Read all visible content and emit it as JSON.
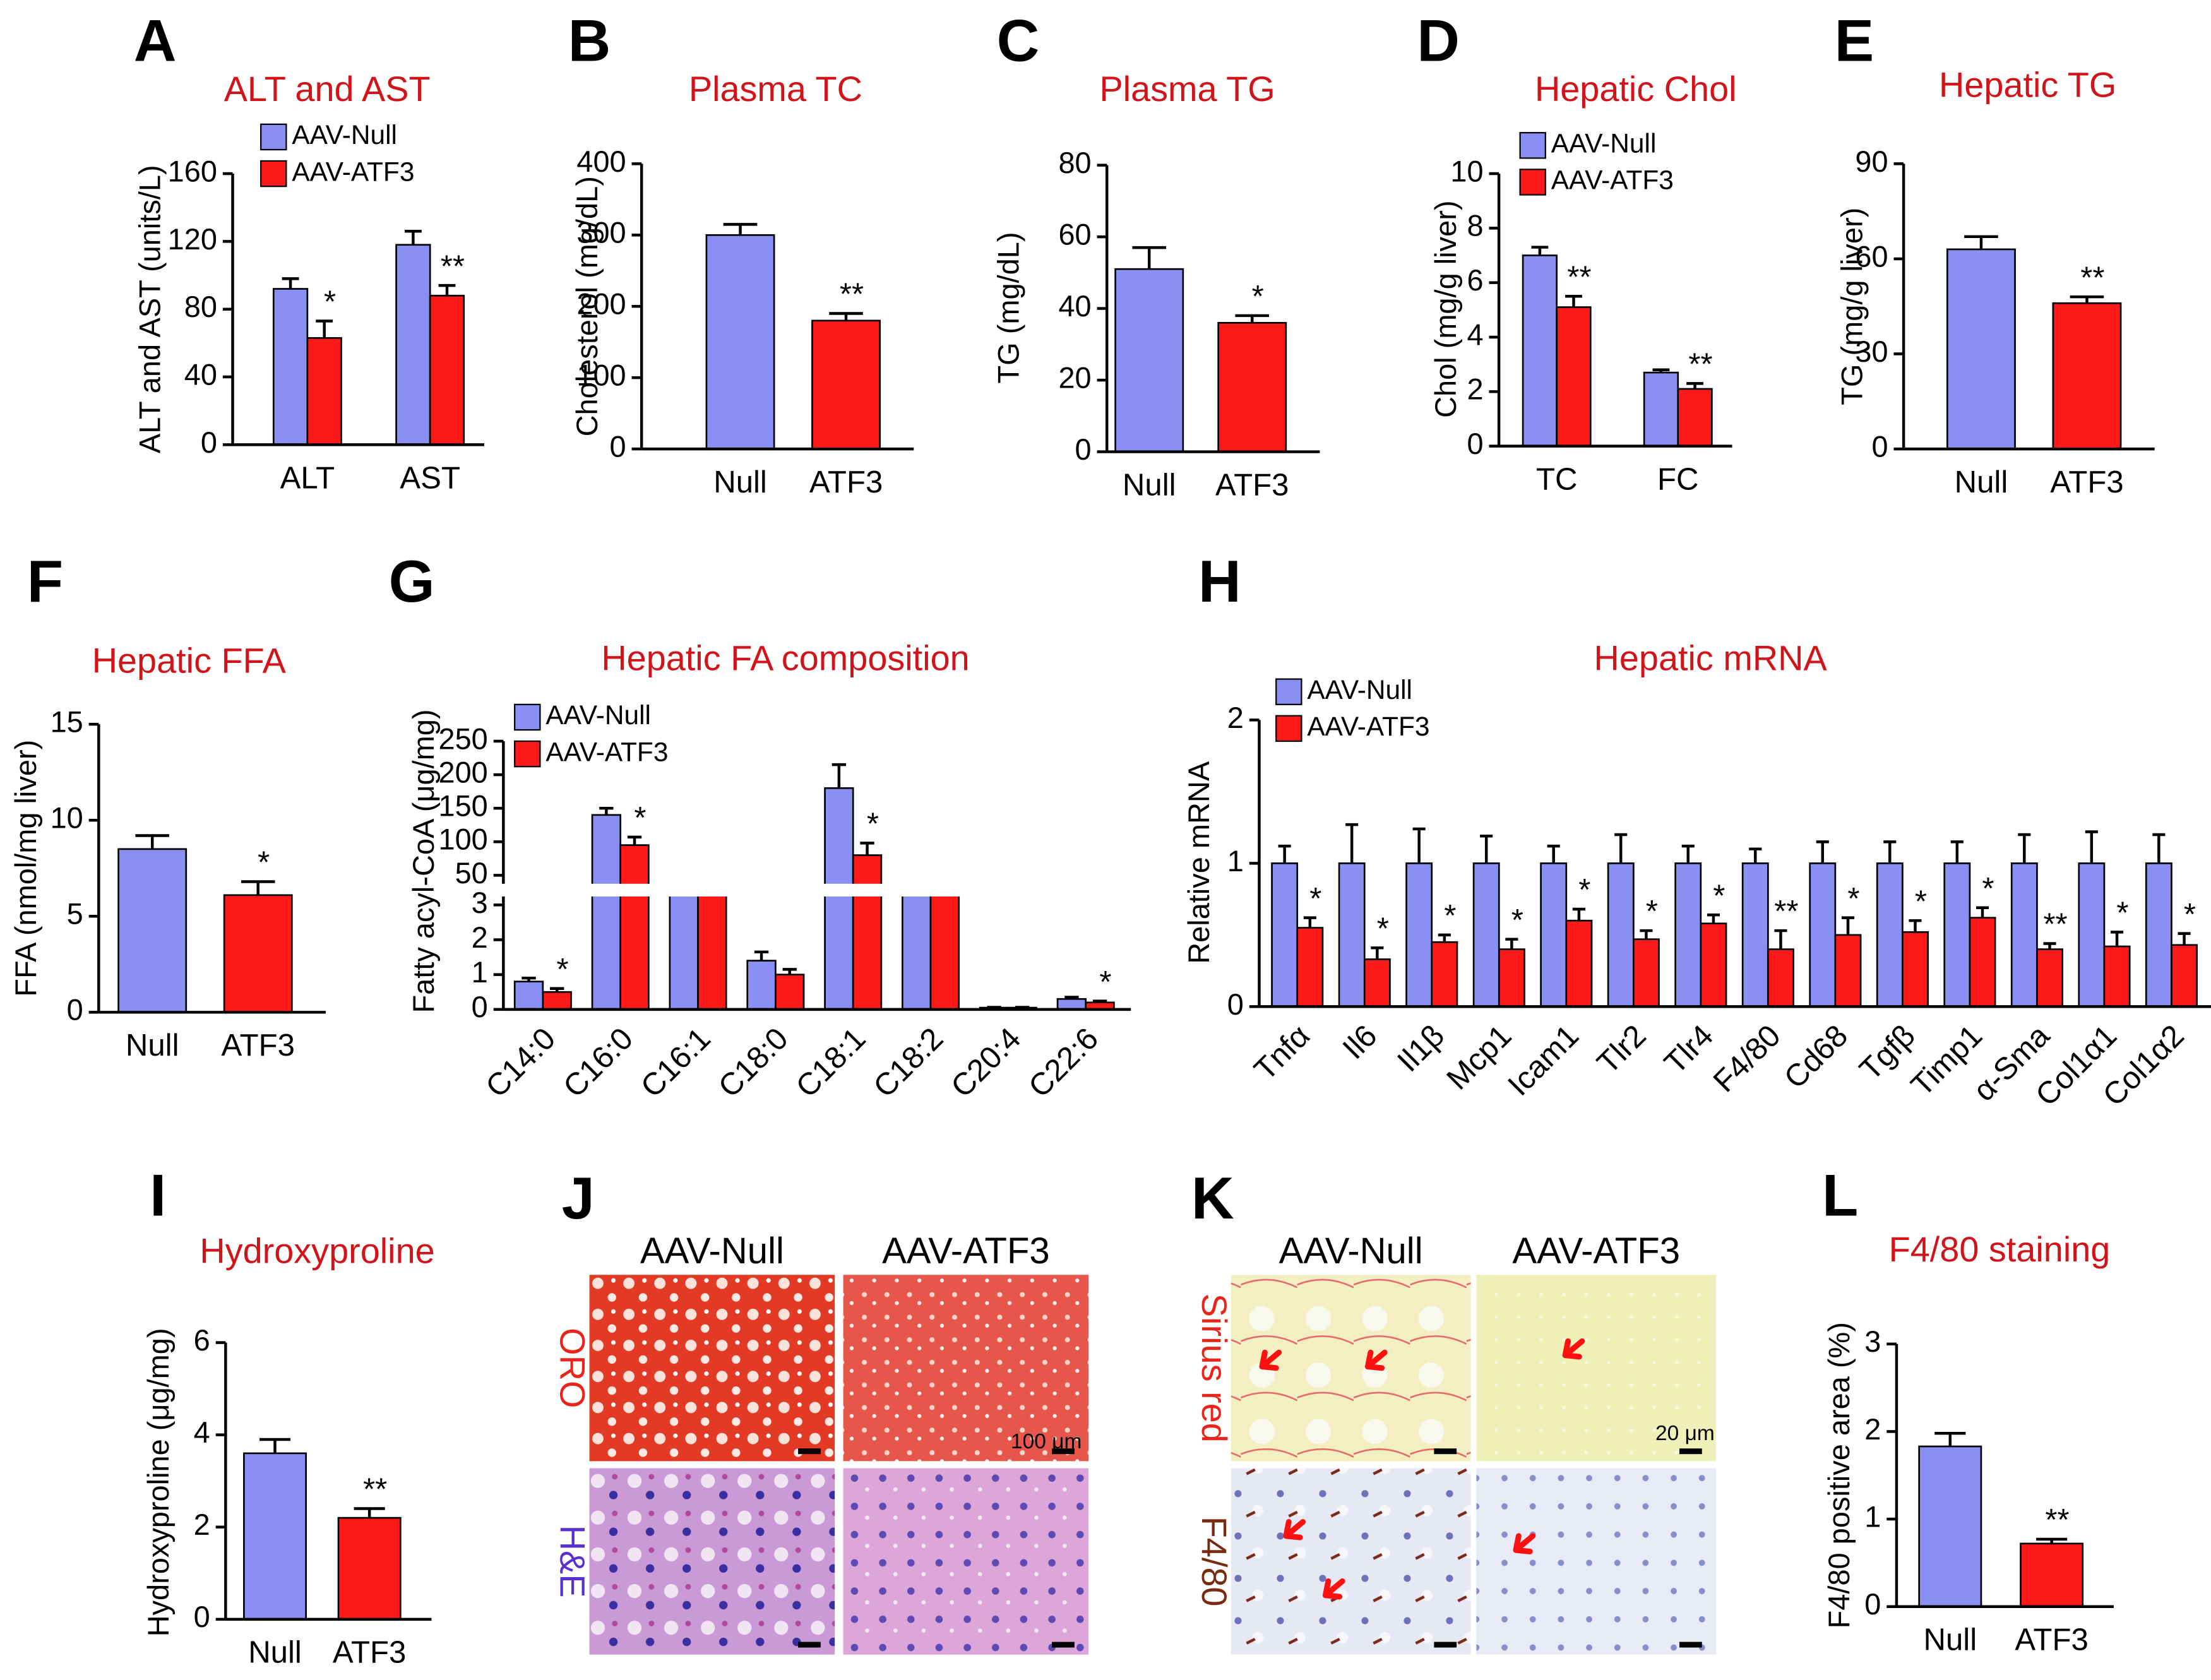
{
  "chart_data": [
    {
      "type": "bar",
      "panel": "A",
      "title": "ALT and AST",
      "ylabel": "ALT and AST (units/L)",
      "categories": [
        "ALT",
        "AST"
      ],
      "series": [
        {
          "name": "AAV-Null",
          "color": "#8a8ff3",
          "values": [
            92,
            118
          ],
          "errors": [
            6,
            8
          ],
          "significance": [
            null,
            null
          ]
        },
        {
          "name": "AAV-ATF3",
          "color": "#ff1a1a",
          "values": [
            63,
            88
          ],
          "errors": [
            10,
            6
          ],
          "significance": [
            "*",
            "**"
          ]
        }
      ],
      "ylim": [
        0,
        160
      ],
      "yticks": [
        0,
        40,
        80,
        120,
        160
      ],
      "legend": true
    },
    {
      "type": "bar",
      "panel": "B",
      "title": "Plasma TC",
      "ylabel": "Cholesterol (mg/dL)",
      "categories": [
        "Null",
        "ATF3"
      ],
      "values": [
        300,
        180
      ],
      "errors": [
        15,
        10
      ],
      "colors": [
        "#8a8ff3",
        "#ff1a1a"
      ],
      "significance": [
        null,
        "**"
      ],
      "ylim": [
        0,
        400
      ],
      "yticks": [
        0,
        100,
        200,
        300,
        400
      ]
    },
    {
      "type": "bar",
      "panel": "C",
      "title": "Plasma TG",
      "ylabel": "TG (mg/dL)",
      "categories": [
        "Null",
        "ATF3"
      ],
      "values": [
        51,
        36
      ],
      "errors": [
        6,
        2
      ],
      "colors": [
        "#8a8ff3",
        "#ff1a1a"
      ],
      "significance": [
        null,
        "*"
      ],
      "ylim": [
        0,
        80
      ],
      "yticks": [
        0,
        20,
        40,
        60,
        80
      ]
    },
    {
      "type": "bar",
      "panel": "D",
      "title": "Hepatic Chol",
      "ylabel": "Chol (mg/g liver)",
      "categories": [
        "TC",
        "FC"
      ],
      "series": [
        {
          "name": "AAV-Null",
          "color": "#8a8ff3",
          "values": [
            7.0,
            2.7
          ],
          "errors": [
            0.3,
            0.1
          ],
          "significance": [
            null,
            null
          ]
        },
        {
          "name": "AAV-ATF3",
          "color": "#ff1a1a",
          "values": [
            5.1,
            2.1
          ],
          "errors": [
            0.4,
            0.2
          ],
          "significance": [
            "**",
            "**"
          ]
        }
      ],
      "ylim": [
        0,
        10
      ],
      "yticks": [
        0,
        2,
        4,
        6,
        8,
        10
      ],
      "legend": true
    },
    {
      "type": "bar",
      "panel": "E",
      "title": "Hepatic TG",
      "ylabel": "TG (mg/g liver)",
      "categories": [
        "Null",
        "ATF3"
      ],
      "values": [
        63,
        46
      ],
      "errors": [
        4,
        2
      ],
      "colors": [
        "#8a8ff3",
        "#ff1a1a"
      ],
      "significance": [
        null,
        "**"
      ],
      "ylim": [
        0,
        90
      ],
      "yticks": [
        0,
        30,
        60,
        90
      ]
    },
    {
      "type": "bar",
      "panel": "F",
      "title": "Hepatic FFA",
      "ylabel": "FFA (nmol/mg liver)",
      "categories": [
        "Null",
        "ATF3"
      ],
      "values": [
        8.5,
        6.1
      ],
      "errors": [
        0.7,
        0.7
      ],
      "colors": [
        "#8a8ff3",
        "#ff1a1a"
      ],
      "significance": [
        null,
        "*"
      ],
      "ylim": [
        0,
        15
      ],
      "yticks": [
        0,
        5,
        10,
        15
      ]
    },
    {
      "type": "bar",
      "panel": "G",
      "title": "Hepatic FA composition",
      "ylabel": "Fatty acyl-CoA (μg/mg)",
      "categories": [
        "C14:0",
        "C16:0",
        "C16:1",
        "C18:0",
        "C18:1",
        "C18:2",
        "C20:4",
        "C22:6"
      ],
      "series": [
        {
          "name": "AAV-Null",
          "color": "#8a8ff3",
          "values": [
            0.8,
            140,
            20,
            1.4,
            180,
            20,
            0.05,
            0.3
          ],
          "errors": [
            0.1,
            10,
            1,
            0.25,
            35,
            1,
            0.01,
            0.05
          ],
          "significance": [
            null,
            null,
            null,
            null,
            null,
            null,
            null,
            null
          ]
        },
        {
          "name": "AAV-ATF3",
          "color": "#ff1a1a",
          "values": [
            0.5,
            95,
            20,
            1.0,
            80,
            20,
            0.05,
            0.2
          ],
          "errors": [
            0.1,
            12,
            1,
            0.15,
            18,
            1,
            0.01,
            0.04
          ],
          "significance": [
            "*",
            "*",
            null,
            null,
            "*",
            null,
            null,
            "*"
          ]
        }
      ],
      "ylim": [
        0,
        250
      ],
      "ybreak": [
        3,
        50
      ],
      "yticks": [
        0,
        1,
        2,
        3,
        50,
        100,
        150,
        200,
        250
      ],
      "legend": true
    },
    {
      "type": "bar",
      "panel": "H",
      "title": "Hepatic mRNA",
      "ylabel": "Relative mRNA",
      "categories": [
        "Tnfα",
        "Il6",
        "Il1β",
        "Mcp1",
        "Icam1",
        "Tlr2",
        "Tlr4",
        "F4/80",
        "Cd68",
        "Tgfβ",
        "Timp1",
        "α-Sma",
        "Col1α1",
        "Col1α2"
      ],
      "series": [
        {
          "name": "AAV-Null",
          "color": "#8a8ff3",
          "values": [
            1,
            1,
            1,
            1,
            1,
            1,
            1,
            1,
            1,
            1,
            1,
            1,
            1,
            1
          ],
          "errors": [
            0.12,
            0.27,
            0.24,
            0.19,
            0.12,
            0.2,
            0.12,
            0.1,
            0.15,
            0.15,
            0.15,
            0.2,
            0.22,
            0.2
          ],
          "significance": [
            null,
            null,
            null,
            null,
            null,
            null,
            null,
            null,
            null,
            null,
            null,
            null,
            null,
            null
          ]
        },
        {
          "name": "AAV-ATF3",
          "color": "#ff1a1a",
          "values": [
            0.55,
            0.33,
            0.45,
            0.4,
            0.6,
            0.47,
            0.58,
            0.4,
            0.5,
            0.52,
            0.62,
            0.4,
            0.42,
            0.43
          ],
          "errors": [
            0.07,
            0.08,
            0.05,
            0.07,
            0.08,
            0.06,
            0.06,
            0.13,
            0.12,
            0.08,
            0.07,
            0.04,
            0.1,
            0.08
          ],
          "significance": [
            "*",
            "*",
            "*",
            "*",
            "*",
            "*",
            "*",
            "**",
            "*",
            "*",
            "*",
            "**",
            "*",
            "*"
          ]
        }
      ],
      "ylim": [
        0,
        2
      ],
      "yticks": [
        0,
        1,
        2
      ],
      "legend": true
    },
    {
      "type": "bar",
      "panel": "I",
      "title": "Hydroxyproline",
      "ylabel": "Hydroxyproline (μg/mg)",
      "categories": [
        "Null",
        "ATF3"
      ],
      "values": [
        3.6,
        2.2
      ],
      "errors": [
        0.3,
        0.2
      ],
      "colors": [
        "#8a8ff3",
        "#ff1a1a"
      ],
      "significance": [
        null,
        "**"
      ],
      "ylim": [
        0,
        6
      ],
      "yticks": [
        0,
        2,
        4,
        6
      ]
    },
    {
      "type": "bar",
      "panel": "L",
      "title": "F4/80 staining",
      "ylabel": "F4/80 positive area (%)",
      "categories": [
        "Null",
        "ATF3"
      ],
      "values": [
        1.83,
        0.72
      ],
      "errors": [
        0.15,
        0.05
      ],
      "colors": [
        "#8a8ff3",
        "#ff1a1a"
      ],
      "significance": [
        null,
        "**"
      ],
      "ylim": [
        0,
        3
      ],
      "yticks": [
        0,
        1,
        2,
        3
      ]
    }
  ],
  "image_panels": [
    {
      "panel": "J",
      "columns": [
        "AAV-Null",
        "AAV-ATF3"
      ],
      "rows": [
        "ORO",
        "H&E"
      ],
      "scale_bar": "100 μm"
    },
    {
      "panel": "K",
      "columns": [
        "AAV-Null",
        "AAV-ATF3"
      ],
      "rows": [
        "Sirius red",
        "F4/80"
      ],
      "scale_bar": "20 μm"
    }
  ]
}
